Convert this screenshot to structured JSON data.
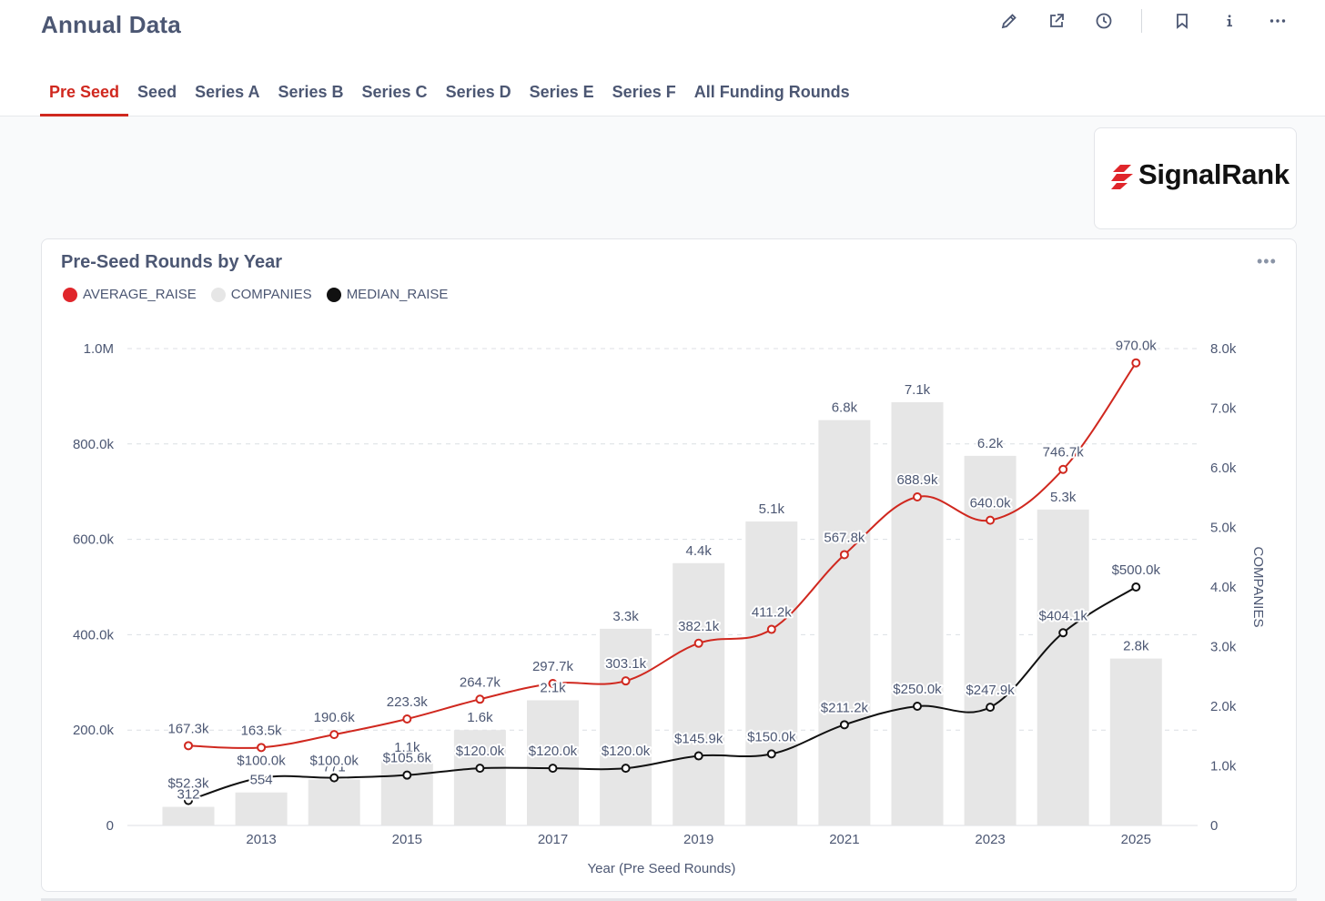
{
  "header": {
    "title": "Annual Data",
    "icons": [
      "pencil-icon",
      "share-icon",
      "clock-icon",
      "bookmark-icon",
      "info-icon",
      "more-icon"
    ]
  },
  "tabs": [
    {
      "label": "Pre Seed",
      "active": true
    },
    {
      "label": "Seed",
      "active": false
    },
    {
      "label": "Series A",
      "active": false
    },
    {
      "label": "Series B",
      "active": false
    },
    {
      "label": "Series C",
      "active": false
    },
    {
      "label": "Series D",
      "active": false
    },
    {
      "label": "Series E",
      "active": false
    },
    {
      "label": "Series F",
      "active": false
    },
    {
      "label": "All Funding Rounds",
      "active": false
    }
  ],
  "logo": {
    "text": "SignalRank"
  },
  "card": {
    "title": "Pre-Seed Rounds by Year"
  },
  "colors": {
    "accent": "#d0281f",
    "average": "#d0281f",
    "median": "#111111",
    "companies": "#e6e6e6"
  },
  "chart_data": {
    "type": "bar+line",
    "title": "Pre-Seed Rounds by Year",
    "xlabel": "Year (Pre Seed Rounds)",
    "y2label": "COMPANIES",
    "categories": [
      2012,
      2013,
      2014,
      2015,
      2016,
      2017,
      2018,
      2019,
      2020,
      2021,
      2022,
      2023,
      2024,
      2025
    ],
    "x_ticks": [
      "2013",
      "2015",
      "2017",
      "2019",
      "2021",
      "2023",
      "2025"
    ],
    "ylim": [
      0,
      1000000
    ],
    "y_ticks": [
      "0",
      "200.0k",
      "400.0k",
      "600.0k",
      "800.0k",
      "1.0M"
    ],
    "y2lim": [
      0,
      8000
    ],
    "y2_ticks": [
      "0",
      "1.0k",
      "2.0k",
      "3.0k",
      "4.0k",
      "5.0k",
      "6.0k",
      "7.0k",
      "8.0k"
    ],
    "legend": [
      "AVERAGE_RAISE",
      "COMPANIES",
      "MEDIAN_RAISE"
    ],
    "series": [
      {
        "name": "COMPANIES",
        "kind": "bar",
        "axis": "right",
        "values": [
          312,
          554,
          771,
          1100,
          1600,
          2100,
          3300,
          4400,
          5100,
          6800,
          7100,
          6200,
          5300,
          2800
        ],
        "labels": [
          "312",
          "554",
          "771",
          "1.1k",
          "1.6k",
          "2.1k",
          "3.3k",
          "4.4k",
          "5.1k",
          "6.8k",
          "7.1k",
          "6.2k",
          "5.3k",
          "2.8k"
        ]
      },
      {
        "name": "AVERAGE_RAISE",
        "kind": "line",
        "axis": "left",
        "values": [
          167300,
          163500,
          190600,
          223300,
          264700,
          297700,
          303100,
          382100,
          411200,
          567800,
          688900,
          640000,
          746700,
          970000
        ],
        "labels": [
          "167.3k",
          "163.5k",
          "190.6k",
          "223.3k",
          "264.7k",
          "297.7k",
          "303.1k",
          "382.1k",
          "411.2k",
          "567.8k",
          "688.9k",
          "640.0k",
          "746.7k",
          "970.0k"
        ]
      },
      {
        "name": "MEDIAN_RAISE",
        "kind": "line",
        "axis": "left",
        "values": [
          52300,
          100000,
          100000,
          105600,
          120000,
          120000,
          120000,
          145900,
          150000,
          211200,
          250000,
          247900,
          404100,
          500000
        ],
        "labels": [
          "$52.3k",
          "$100.0k",
          "$100.0k",
          "$105.6k",
          "$120.0k",
          "$120.0k",
          "$120.0k",
          "$145.9k",
          "$150.0k",
          "$211.2k",
          "$250.0k",
          "$247.9k",
          "$404.1k",
          "$500.0k"
        ]
      }
    ]
  }
}
